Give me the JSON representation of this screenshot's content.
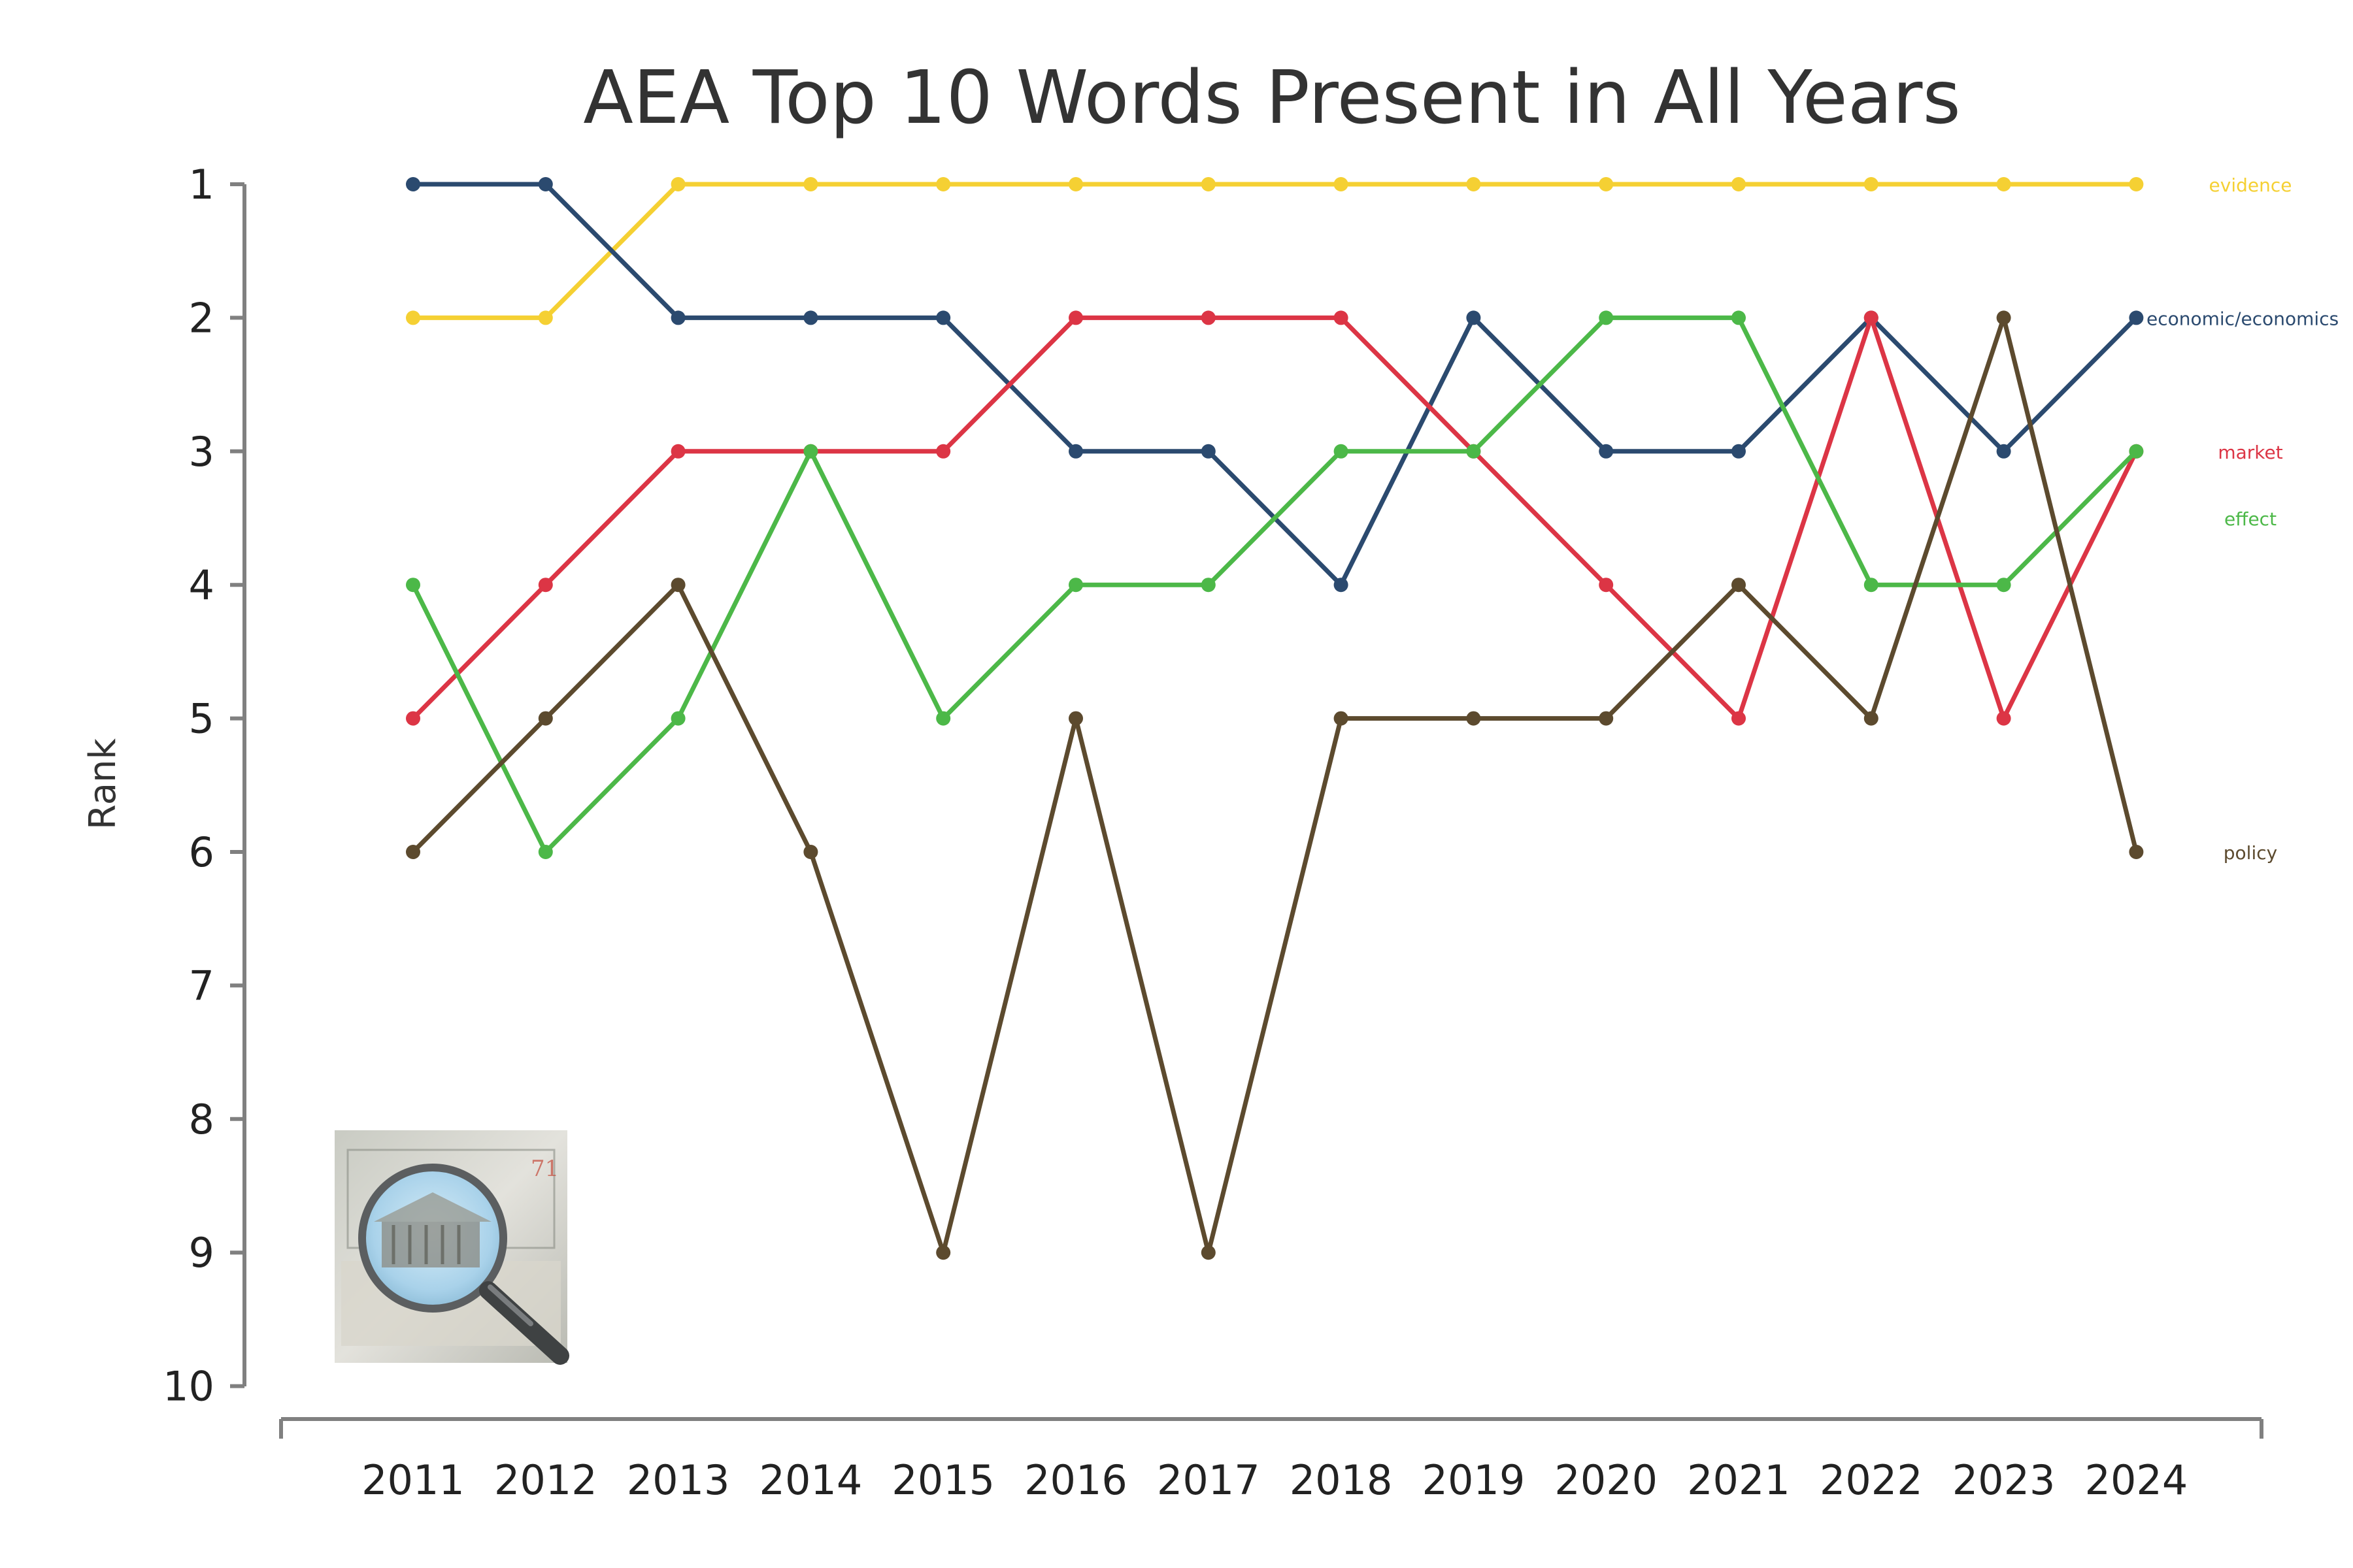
{
  "chart_data": {
    "type": "line",
    "title": "AEA Top 10 Words Present in All Years",
    "ylabel": "Rank",
    "xlabel": "",
    "y_inverted": true,
    "ylim": [
      1,
      10
    ],
    "yticks": [
      1,
      2,
      3,
      4,
      5,
      6,
      7,
      8,
      9,
      10
    ],
    "grid": false,
    "legend": "direct labels at right end of lines",
    "x": [
      2011,
      2012,
      2013,
      2014,
      2015,
      2016,
      2017,
      2018,
      2019,
      2020,
      2021,
      2022,
      2023,
      2024
    ],
    "series": [
      {
        "name": "evidence",
        "color": "#F5D033",
        "values": [
          2,
          2,
          1,
          1,
          1,
          1,
          1,
          1,
          1,
          1,
          1,
          1,
          1,
          1
        ]
      },
      {
        "name": "economic/economics",
        "color": "#2B4A6F",
        "values": [
          1,
          1,
          2,
          2,
          2,
          3,
          3,
          4,
          2,
          3,
          3,
          2,
          3,
          2
        ]
      },
      {
        "name": "market",
        "color": "#DC3545",
        "values": [
          5,
          4,
          3,
          3,
          3,
          2,
          2,
          2,
          3,
          4,
          5,
          2,
          5,
          3
        ]
      },
      {
        "name": "effect",
        "color": "#4CB848",
        "values": [
          4,
          6,
          5,
          3,
          5,
          4,
          4,
          3,
          3,
          2,
          2,
          4,
          4,
          3
        ]
      },
      {
        "name": "policy",
        "color": "#5C4A2E",
        "values": [
          6,
          5,
          4,
          6,
          9,
          5,
          9,
          5,
          5,
          5,
          4,
          5,
          2,
          6
        ]
      }
    ],
    "label_ranks": [
      1,
      2,
      3,
      3.5,
      6
    ],
    "inset_image": "magnifying-glass-over-dollar-bill"
  }
}
